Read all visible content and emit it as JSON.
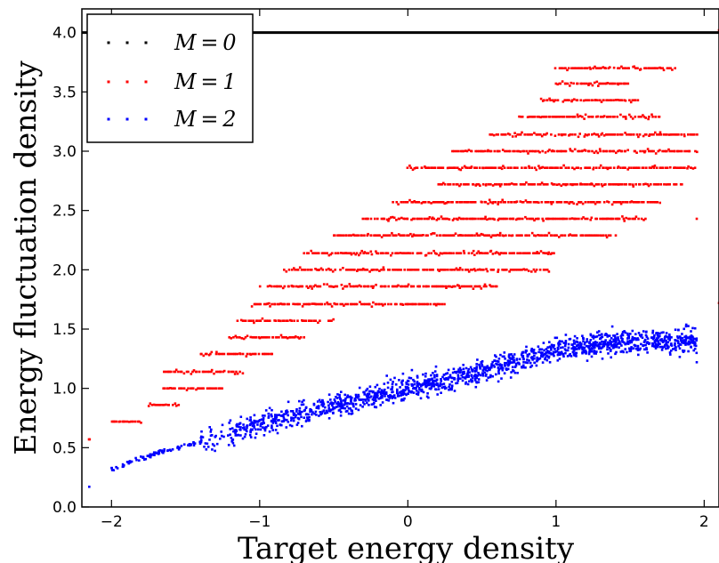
{
  "chart_data": {
    "type": "scatter",
    "xlabel": "Target energy density",
    "ylabel": "Energy fluctuation density",
    "xlim": [
      -2.2,
      2.1
    ],
    "ylim": [
      0.0,
      4.2
    ],
    "x_ticks": [
      "−2",
      "−1",
      "0",
      "1",
      "2"
    ],
    "y_ticks": [
      "0.0",
      "0.5",
      "1.0",
      "1.5",
      "2.0",
      "2.5",
      "3.0",
      "3.5",
      "4.0"
    ],
    "grid": false,
    "legend_position": "top-left",
    "series": [
      {
        "name": "M = 0",
        "legend_label": "M = 0",
        "color": "#000000",
        "kind": "constant",
        "x_range": [
          -2.2,
          2.1
        ],
        "y": 4.0
      },
      {
        "name": "M = 1",
        "legend_label": "M = 1",
        "color": "#ff0000",
        "kind": "banded",
        "bands": [
          {
            "y": 0.57,
            "x": [
              -2.15,
              -2.15
            ]
          },
          {
            "y": 0.72,
            "x": [
              -2.0,
              -1.8
            ]
          },
          {
            "y": 0.86,
            "x": [
              -1.75,
              -1.55
            ]
          },
          {
            "y": 1.0,
            "x": [
              -1.65,
              -1.25
            ]
          },
          {
            "y": 1.14,
            "x": [
              -1.65,
              -1.1
            ]
          },
          {
            "y": 1.29,
            "x": [
              -1.4,
              -0.9
            ]
          },
          {
            "y": 1.43,
            "x": [
              -1.2,
              -0.7
            ]
          },
          {
            "y": 1.57,
            "x": [
              -1.15,
              -0.5
            ]
          },
          {
            "y": 1.71,
            "x": [
              -1.05,
              0.25
            ]
          },
          {
            "y": 1.86,
            "x": [
              -1.0,
              0.6
            ]
          },
          {
            "y": 2.0,
            "x": [
              -0.85,
              0.95
            ]
          },
          {
            "y": 2.14,
            "x": [
              -0.7,
              1.0
            ]
          },
          {
            "y": 2.29,
            "x": [
              -0.5,
              1.4
            ]
          },
          {
            "y": 2.43,
            "x": [
              -0.3,
              1.6
            ]
          },
          {
            "y": 2.57,
            "x": [
              -0.1,
              1.7
            ]
          },
          {
            "y": 2.72,
            "x": [
              0.2,
              1.85
            ]
          },
          {
            "y": 2.86,
            "x": [
              0.0,
              1.95
            ]
          },
          {
            "y": 3.0,
            "x": [
              0.3,
              1.95
            ]
          },
          {
            "y": 3.14,
            "x": [
              0.55,
              1.95
            ]
          },
          {
            "y": 3.29,
            "x": [
              0.75,
              1.7
            ]
          },
          {
            "y": 3.43,
            "x": [
              0.9,
              1.55
            ]
          },
          {
            "y": 3.57,
            "x": [
              1.0,
              1.5
            ]
          },
          {
            "y": 3.7,
            "x": [
              1.0,
              1.8
            ]
          }
        ],
        "outliers": [
          {
            "x": 1.95,
            "y": 2.43
          },
          {
            "x": 2.1,
            "y": 1.72
          },
          {
            "x": 2.1,
            "y": 4.02
          }
        ]
      },
      {
        "name": "M = 2",
        "legend_label": "M = 2",
        "color": "#0000ff",
        "kind": "cloud",
        "trend": [
          {
            "x": -2.0,
            "y": 0.32
          },
          {
            "x": -1.65,
            "y": 0.47
          },
          {
            "x": -1.3,
            "y": 0.58
          },
          {
            "x": -1.0,
            "y": 0.7
          },
          {
            "x": -0.6,
            "y": 0.83
          },
          {
            "x": -0.2,
            "y": 0.95
          },
          {
            "x": 0.2,
            "y": 1.05
          },
          {
            "x": 0.6,
            "y": 1.18
          },
          {
            "x": 1.0,
            "y": 1.33
          },
          {
            "x": 1.5,
            "y": 1.4
          },
          {
            "x": 1.95,
            "y": 1.4
          }
        ],
        "x_range": [
          -2.0,
          1.95
        ],
        "spread": 0.12,
        "outliers": [
          {
            "x": -2.15,
            "y": 0.17
          },
          {
            "x": 1.95,
            "y": 1.22
          },
          {
            "x": 1.85,
            "y": 1.39
          }
        ]
      }
    ]
  }
}
